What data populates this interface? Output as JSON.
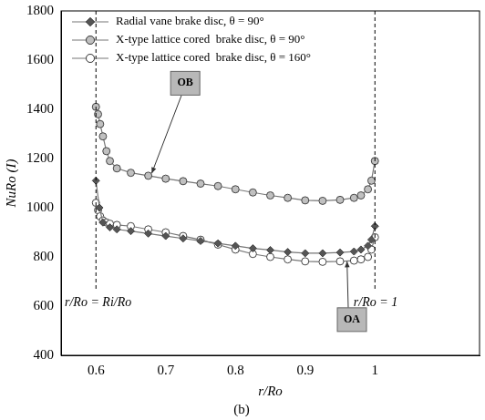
{
  "chart_data": {
    "type": "line",
    "subtitle": "(b)",
    "x_label": "r/Ro",
    "y_label": "NuRo (I)",
    "xlim": [
      0.55,
      1.15
    ],
    "xticks": [
      0.6,
      0.7,
      0.8,
      0.9,
      1
    ],
    "ylim": [
      400,
      1800
    ],
    "yticks": [
      400,
      600,
      800,
      1000,
      1200,
      1400,
      1600,
      1800
    ],
    "grid": false,
    "legend": "upper left",
    "series": [
      {
        "name": "Radial vane brake disc, θ = 90°",
        "color": "#555555",
        "marker": "diamond",
        "line_style": "solid",
        "x": [
          0.6,
          0.605,
          0.61,
          0.62,
          0.63,
          0.65,
          0.675,
          0.7,
          0.725,
          0.75,
          0.775,
          0.8,
          0.825,
          0.85,
          0.875,
          0.9,
          0.925,
          0.95,
          0.97,
          0.98,
          0.99,
          0.995,
          1
        ],
        "values": [
          1110,
          1000,
          940,
          920,
          912,
          905,
          895,
          885,
          875,
          865,
          855,
          845,
          835,
          828,
          820,
          815,
          815,
          818,
          822,
          830,
          845,
          870,
          925
        ]
      },
      {
        "name": "X-type lattice cored  brake disc, θ = 90°",
        "color": "#c0c0c0",
        "marker": "circle",
        "line_style": "solid",
        "x": [
          0.6,
          0.603,
          0.606,
          0.61,
          0.615,
          0.62,
          0.63,
          0.65,
          0.675,
          0.7,
          0.725,
          0.75,
          0.775,
          0.8,
          0.825,
          0.85,
          0.875,
          0.9,
          0.925,
          0.95,
          0.97,
          0.98,
          0.99,
          0.995,
          1
        ],
        "values": [
          1410,
          1380,
          1340,
          1290,
          1230,
          1190,
          1160,
          1142,
          1130,
          1118,
          1108,
          1098,
          1088,
          1075,
          1062,
          1050,
          1040,
          1030,
          1028,
          1032,
          1040,
          1050,
          1075,
          1110,
          1190
        ]
      },
      {
        "name": "X-type lattice cored  brake disc, θ = 160°",
        "color": "#ffffff",
        "marker": "circle",
        "line_style": "solid",
        "x": [
          0.6,
          0.603,
          0.606,
          0.61,
          0.615,
          0.62,
          0.63,
          0.65,
          0.675,
          0.7,
          0.725,
          0.75,
          0.775,
          0.8,
          0.825,
          0.85,
          0.875,
          0.9,
          0.925,
          0.95,
          0.97,
          0.98,
          0.99,
          0.995,
          1
        ],
        "values": [
          1020,
          990,
          965,
          948,
          940,
          935,
          930,
          925,
          912,
          900,
          885,
          870,
          850,
          830,
          812,
          800,
          790,
          782,
          780,
          782,
          785,
          790,
          800,
          830,
          880
        ]
      }
    ],
    "vlines": [
      0.6,
      1
    ],
    "annotations": [
      {
        "text": "r/Ro = Ri/Ro",
        "x": 0.6,
        "y": 615
      },
      {
        "text": "r/Ro = 1",
        "x": 1,
        "y": 615
      },
      {
        "text": "OB",
        "x": 0.728,
        "y": 1506,
        "point": [
          0.68,
          1140
        ]
      },
      {
        "text": "OA",
        "x": 0.967,
        "y": 545,
        "point": [
          0.96,
          782
        ]
      }
    ]
  }
}
